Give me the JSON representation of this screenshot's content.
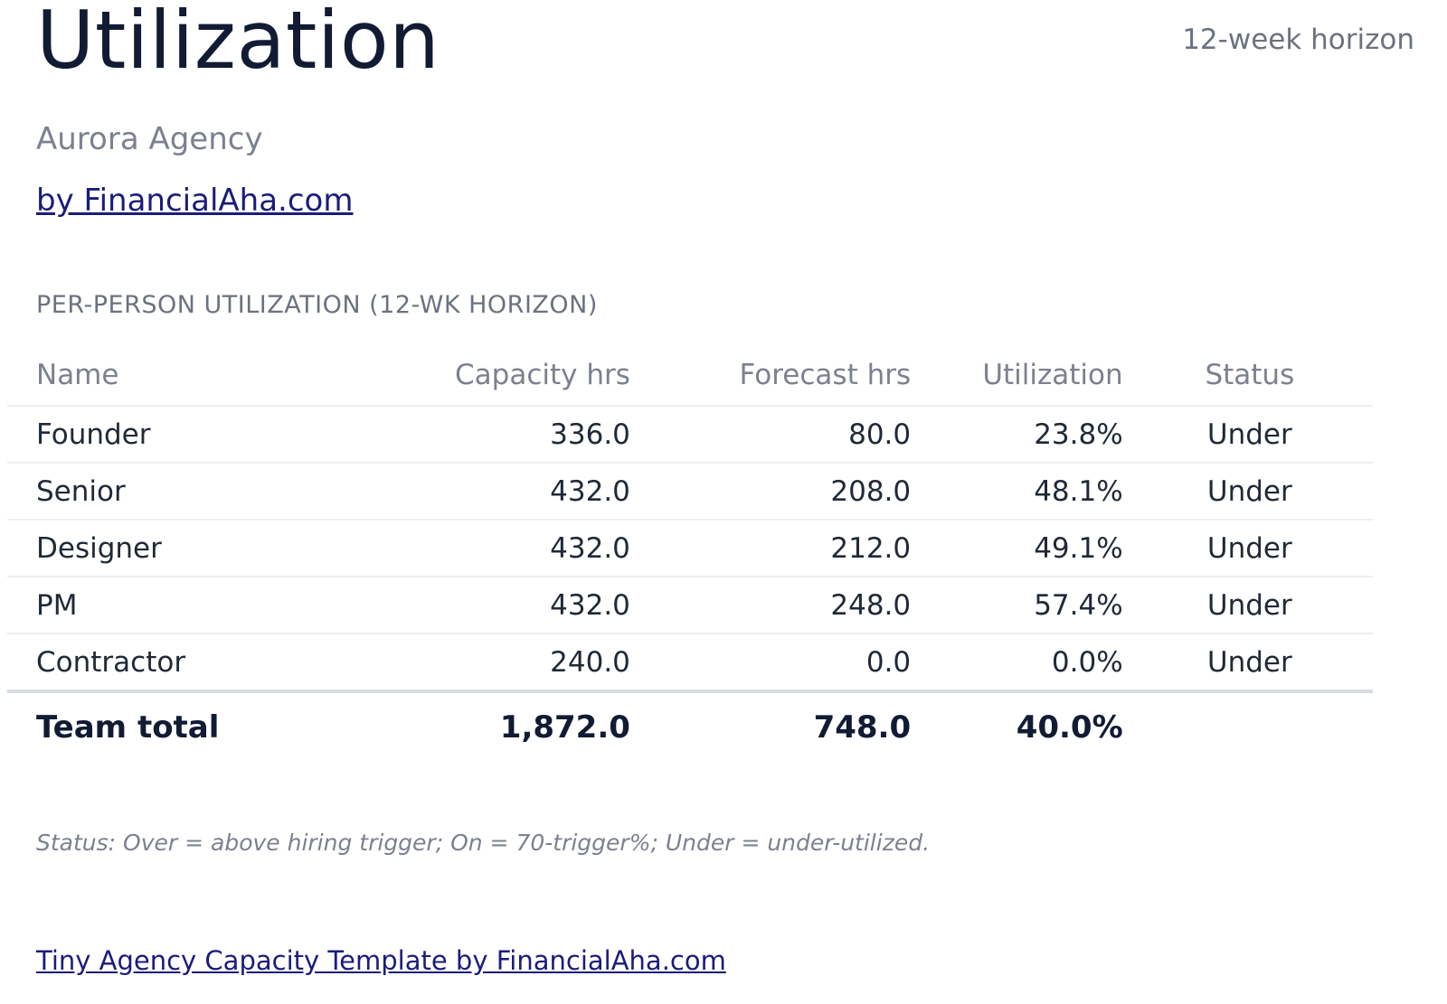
{
  "header": {
    "title": "Utilization",
    "horizon": "12-week horizon",
    "company": "Aurora Agency",
    "by_link": "by FinancialAha.com"
  },
  "section": {
    "heading": "PER-PERSON UTILIZATION (12-WK HORIZON)"
  },
  "table": {
    "columns": {
      "name": "Name",
      "capacity": "Capacity hrs",
      "forecast": "Forecast hrs",
      "utilization": "Utilization",
      "status": "Status"
    },
    "rows": [
      {
        "name": "Founder",
        "capacity": "336.0",
        "forecast": "80.0",
        "utilization": "23.8%",
        "status": "Under"
      },
      {
        "name": "Senior",
        "capacity": "432.0",
        "forecast": "208.0",
        "utilization": "48.1%",
        "status": "Under"
      },
      {
        "name": "Designer",
        "capacity": "432.0",
        "forecast": "212.0",
        "utilization": "49.1%",
        "status": "Under"
      },
      {
        "name": "PM",
        "capacity": "432.0",
        "forecast": "248.0",
        "utilization": "57.4%",
        "status": "Under"
      },
      {
        "name": "Contractor",
        "capacity": "240.0",
        "forecast": "0.0",
        "utilization": "0.0%",
        "status": "Under"
      }
    ],
    "total": {
      "name": "Team total",
      "capacity": "1,872.0",
      "forecast": "748.0",
      "utilization": "40.0%"
    }
  },
  "footnote": "Status: Over = above hiring trigger; On = 70-trigger%; Under = under-utilized.",
  "footer": {
    "link": "Tiny Agency Capacity Template by FinancialAha.com"
  }
}
